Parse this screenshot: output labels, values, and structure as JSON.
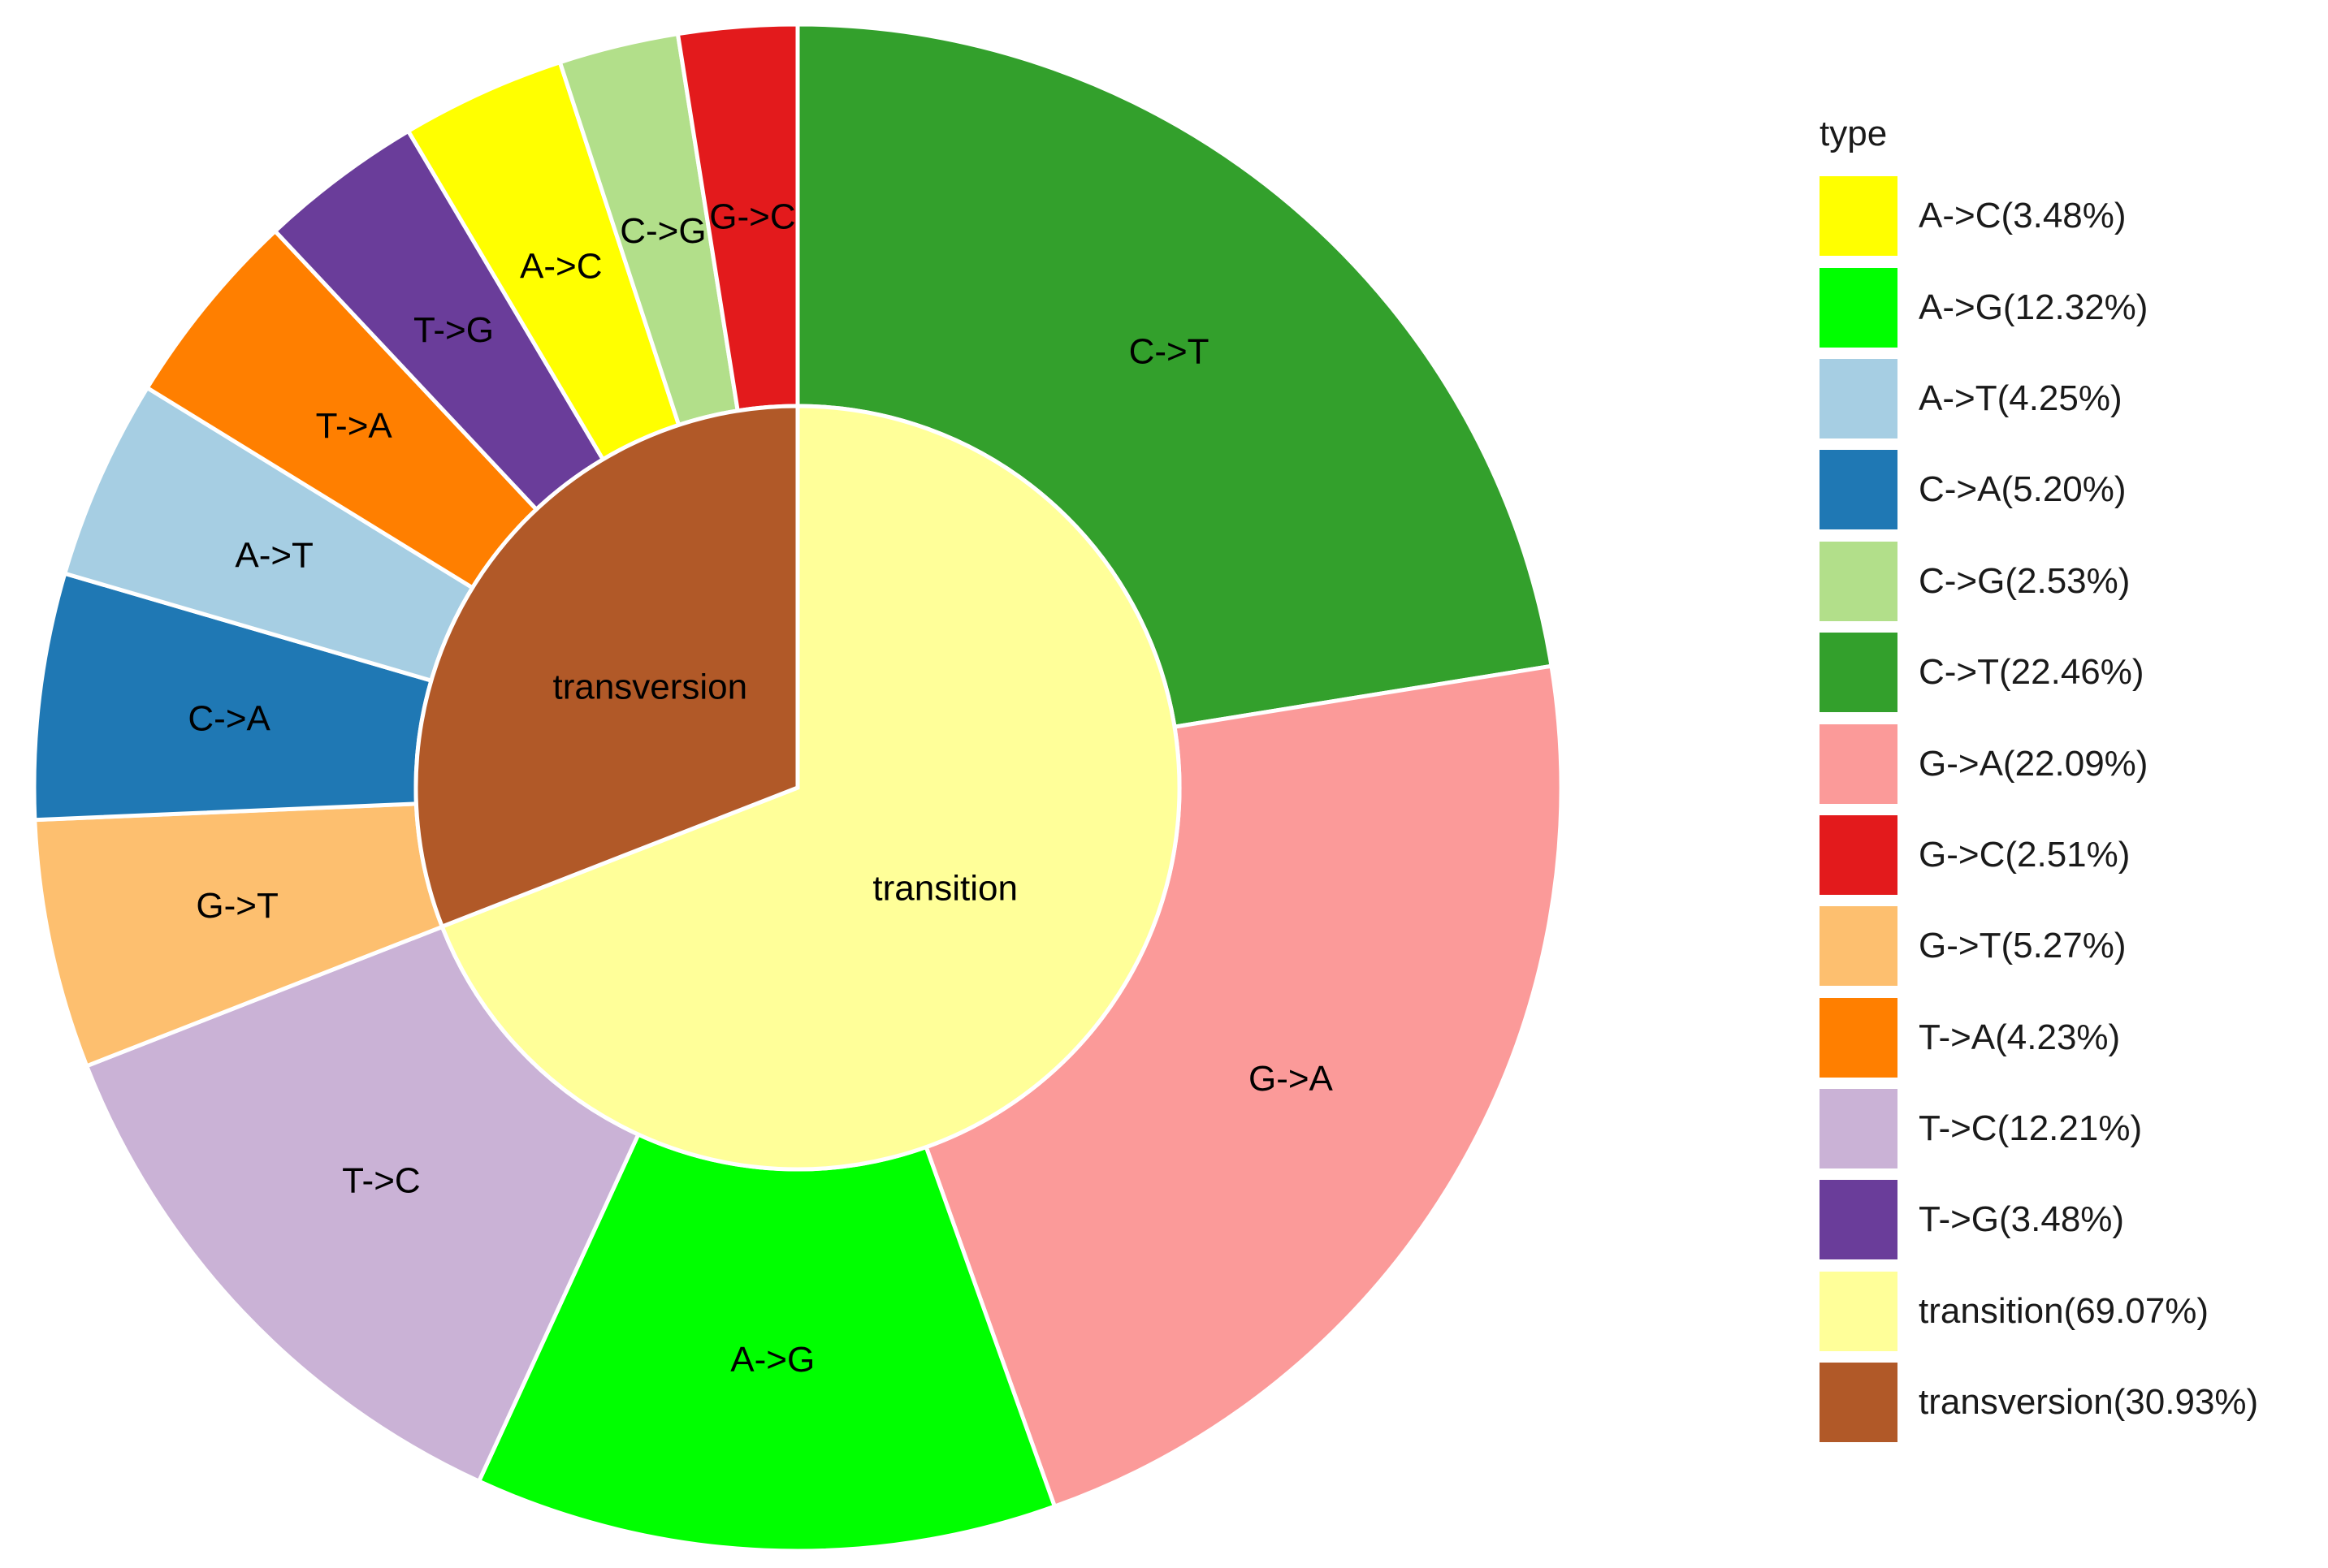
{
  "chart_data": {
    "type": "pie",
    "subtype": "donut-sunburst",
    "legend_title": "type",
    "legend_position": "right",
    "inner": [
      {
        "label": "transition",
        "value": 69.07,
        "color": "#FFFF99"
      },
      {
        "label": "transversion",
        "value": 30.93,
        "color": "#B15928"
      }
    ],
    "outer": [
      {
        "label": "C->T",
        "value": 22.46,
        "color": "#33A02C"
      },
      {
        "label": "G->A",
        "value": 22.09,
        "color": "#FB9A99"
      },
      {
        "label": "A->G",
        "value": 12.32,
        "color": "#00FF00"
      },
      {
        "label": "T->C",
        "value": 12.21,
        "color": "#CAB2D6"
      },
      {
        "label": "G->T",
        "value": 5.27,
        "color": "#FDBF6F"
      },
      {
        "label": "C->A",
        "value": 5.2,
        "color": "#1F78B4"
      },
      {
        "label": "A->T",
        "value": 4.25,
        "color": "#A6CEE3"
      },
      {
        "label": "T->A",
        "value": 4.23,
        "color": "#FF7F00"
      },
      {
        "label": "T->G",
        "value": 3.48,
        "color": "#6A3D9A"
      },
      {
        "label": "A->C",
        "value": 3.48,
        "color": "#FFFF00"
      },
      {
        "label": "C->G",
        "value": 2.53,
        "color": "#B2DF8A"
      },
      {
        "label": "G->C",
        "value": 2.51,
        "color": "#E31A1C"
      }
    ],
    "legend": [
      {
        "label": "A->C(3.48%)",
        "color": "#FFFF00"
      },
      {
        "label": "A->G(12.32%)",
        "color": "#00FF00"
      },
      {
        "label": "A->T(4.25%)",
        "color": "#A6CEE3"
      },
      {
        "label": "C->A(5.20%)",
        "color": "#1F78B4"
      },
      {
        "label": "C->G(2.53%)",
        "color": "#B2DF8A"
      },
      {
        "label": "C->T(22.46%)",
        "color": "#33A02C"
      },
      {
        "label": "G->A(22.09%)",
        "color": "#FB9A99"
      },
      {
        "label": "G->C(2.51%)",
        "color": "#E31A1C"
      },
      {
        "label": "G->T(5.27%)",
        "color": "#FDBF6F"
      },
      {
        "label": "T->A(4.23%)",
        "color": "#FF7F00"
      },
      {
        "label": "T->C(12.21%)",
        "color": "#CAB2D6"
      },
      {
        "label": "T->G(3.48%)",
        "color": "#6A3D9A"
      },
      {
        "label": "transition(69.07%)",
        "color": "#FFFF99"
      },
      {
        "label": "transversion(30.93%)",
        "color": "#B15928"
      }
    ]
  }
}
